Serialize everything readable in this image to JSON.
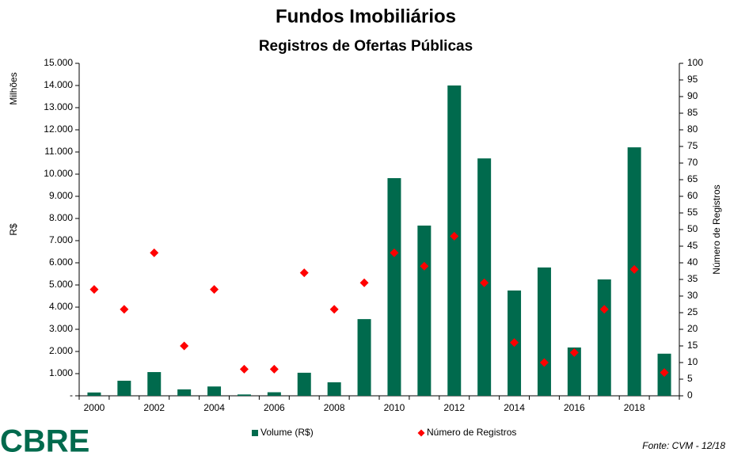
{
  "chart_data": {
    "type": "bar",
    "title": "Fundos Imobiliários",
    "subtitle": "Registros de Ofertas Públicas",
    "y_label": "R$",
    "y_unit_label": "Milhões",
    "y2_label": "Número de Registros",
    "source": "Fonte: CVM - 12/18",
    "logo": "CBRE",
    "legend": "bottom",
    "categories": [
      "2000",
      null,
      "2002",
      null,
      "2004",
      null,
      "2006",
      null,
      "2008",
      null,
      "2010",
      null,
      "2012",
      null,
      "2014",
      null,
      "2016",
      null,
      "2018",
      null
    ],
    "series": [
      {
        "name": "Volume (R$)",
        "type": "bar",
        "color": "#006a4d",
        "values": [
          150,
          680,
          1070,
          290,
          420,
          60,
          160,
          1040,
          610,
          3460,
          9820,
          7680,
          14000,
          10710,
          4750,
          5790,
          2180,
          5250,
          11210,
          1900
        ]
      },
      {
        "name": "Número de Registros",
        "type": "scatter",
        "axis": "y2",
        "color": "#ff0000",
        "values": [
          32,
          26,
          43,
          15,
          32,
          8,
          8,
          37,
          26,
          34,
          43,
          39,
          48,
          34,
          16,
          10,
          13,
          26,
          38,
          7
        ]
      }
    ],
    "ylim": [
      0,
      15000
    ],
    "yticks": [
      {
        "value": 0,
        "label": "-"
      },
      {
        "value": 1000,
        "label": "1.000"
      },
      {
        "value": 2000,
        "label": "2.000"
      },
      {
        "value": 3000,
        "label": "3.000"
      },
      {
        "value": 4000,
        "label": "4.000"
      },
      {
        "value": 5000,
        "label": "5.000"
      },
      {
        "value": 6000,
        "label": "6.000"
      },
      {
        "value": 7000,
        "label": "7.000"
      },
      {
        "value": 8000,
        "label": "8.000"
      },
      {
        "value": 9000,
        "label": "9.000"
      },
      {
        "value": 10000,
        "label": "10.000"
      },
      {
        "value": 11000,
        "label": "11.000"
      },
      {
        "value": 12000,
        "label": "12.000"
      },
      {
        "value": 13000,
        "label": "13.000"
      },
      {
        "value": 14000,
        "label": "14.000"
      },
      {
        "value": 15000,
        "label": "15.000"
      }
    ],
    "y2lim": [
      0,
      100
    ],
    "y2ticks": [
      0,
      5,
      10,
      15,
      20,
      25,
      30,
      35,
      40,
      45,
      50,
      55,
      60,
      65,
      70,
      75,
      80,
      85,
      90,
      95,
      100
    ],
    "grid": false
  }
}
